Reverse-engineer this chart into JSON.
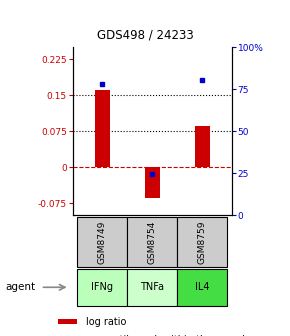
{
  "title": "GDS498 / 24233",
  "samples": [
    "GSM8749",
    "GSM8754",
    "GSM8759"
  ],
  "agents": [
    "IFNg",
    "TNFa",
    "IL4"
  ],
  "log_ratios": [
    0.16,
    -0.065,
    0.085
  ],
  "percentile_ranks": [
    0.78,
    0.245,
    0.805
  ],
  "bar_color": "#cc0000",
  "dot_color": "#0000cc",
  "ylim_left": [
    -0.1,
    0.25
  ],
  "ylim_right": [
    0.0,
    1.0
  ],
  "yticks_left": [
    -0.075,
    0,
    0.075,
    0.15,
    0.225
  ],
  "yticks_right": [
    0.0,
    0.25,
    0.5,
    0.75,
    1.0
  ],
  "ytick_labels_left": [
    "-0.075",
    "0",
    "0.075",
    "0.15",
    "0.225"
  ],
  "ytick_labels_right": [
    "0",
    "25",
    "50",
    "75",
    "100%"
  ],
  "hline_dashed_red": 0.0,
  "hlines_dotted": [
    0.075,
    0.15
  ],
  "sample_box_color": "#cccccc",
  "agent_bg_colors": [
    "#bbffbb",
    "#ccffcc",
    "#44dd44"
  ],
  "background_color": "#ffffff",
  "legend_log_ratio_color": "#cc0000",
  "legend_percentile_color": "#0000cc",
  "bar_width": 0.3
}
